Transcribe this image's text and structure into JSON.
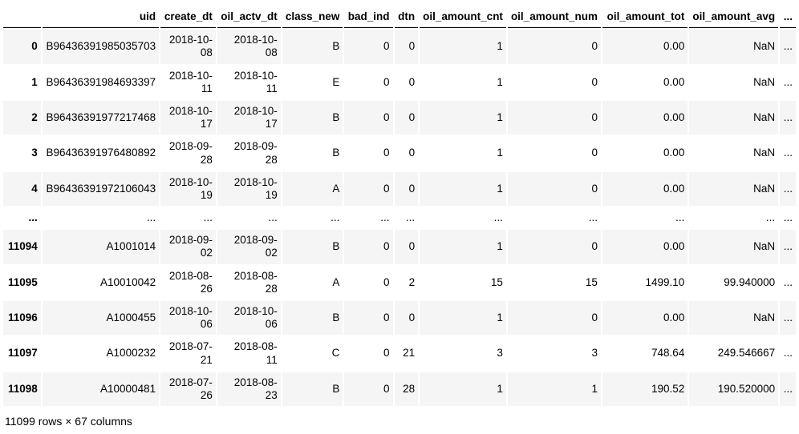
{
  "table": {
    "columns": [
      "",
      "uid",
      "create_dt",
      "oil_actv_dt",
      "class_new",
      "bad_ind",
      "dtn",
      "oil_amount_cnt",
      "oil_amount_num",
      "oil_amount_tot",
      "oil_amount_avg",
      "..."
    ],
    "rows": [
      {
        "index": "0",
        "cells": [
          "B96436391985035703",
          "2018-10-08",
          "2018-10-08",
          "B",
          "0",
          "0",
          "1",
          "0",
          "0.00",
          "NaN",
          "..."
        ]
      },
      {
        "index": "1",
        "cells": [
          "B96436391984693397",
          "2018-10-11",
          "2018-10-11",
          "E",
          "0",
          "0",
          "1",
          "0",
          "0.00",
          "NaN",
          "..."
        ]
      },
      {
        "index": "2",
        "cells": [
          "B96436391977217468",
          "2018-10-17",
          "2018-10-17",
          "B",
          "0",
          "0",
          "1",
          "0",
          "0.00",
          "NaN",
          "..."
        ]
      },
      {
        "index": "3",
        "cells": [
          "B96436391976480892",
          "2018-09-28",
          "2018-09-28",
          "B",
          "0",
          "0",
          "1",
          "0",
          "0.00",
          "NaN",
          "..."
        ]
      },
      {
        "index": "4",
        "cells": [
          "B96436391972106043",
          "2018-10-19",
          "2018-10-19",
          "A",
          "0",
          "0",
          "1",
          "0",
          "0.00",
          "NaN",
          "..."
        ]
      },
      {
        "index": "...",
        "cells": [
          "...",
          "...",
          "...",
          "...",
          "...",
          "...",
          "...",
          "...",
          "...",
          "...",
          "..."
        ]
      },
      {
        "index": "11094",
        "cells": [
          "A1001014",
          "2018-09-02",
          "2018-09-02",
          "B",
          "0",
          "0",
          "1",
          "0",
          "0.00",
          "NaN",
          "..."
        ]
      },
      {
        "index": "11095",
        "cells": [
          "A10010042",
          "2018-08-26",
          "2018-08-28",
          "A",
          "0",
          "2",
          "15",
          "15",
          "1499.10",
          "99.940000",
          "..."
        ]
      },
      {
        "index": "11096",
        "cells": [
          "A1000455",
          "2018-10-06",
          "2018-10-06",
          "B",
          "0",
          "0",
          "1",
          "0",
          "0.00",
          "NaN",
          "..."
        ]
      },
      {
        "index": "11097",
        "cells": [
          "A1000232",
          "2018-07-21",
          "2018-08-11",
          "C",
          "0",
          "21",
          "3",
          "3",
          "748.64",
          "249.546667",
          "..."
        ]
      },
      {
        "index": "11098",
        "cells": [
          "A10000481",
          "2018-07-26",
          "2018-08-23",
          "B",
          "0",
          "28",
          "1",
          "1",
          "190.52",
          "190.520000",
          "..."
        ]
      }
    ]
  },
  "footer": {
    "summary": "11099 rows × 67 columns"
  },
  "colors": {
    "stripe": "#f5f5f5",
    "text": "#000000",
    "header_border": "#000000",
    "background": "#ffffff"
  }
}
